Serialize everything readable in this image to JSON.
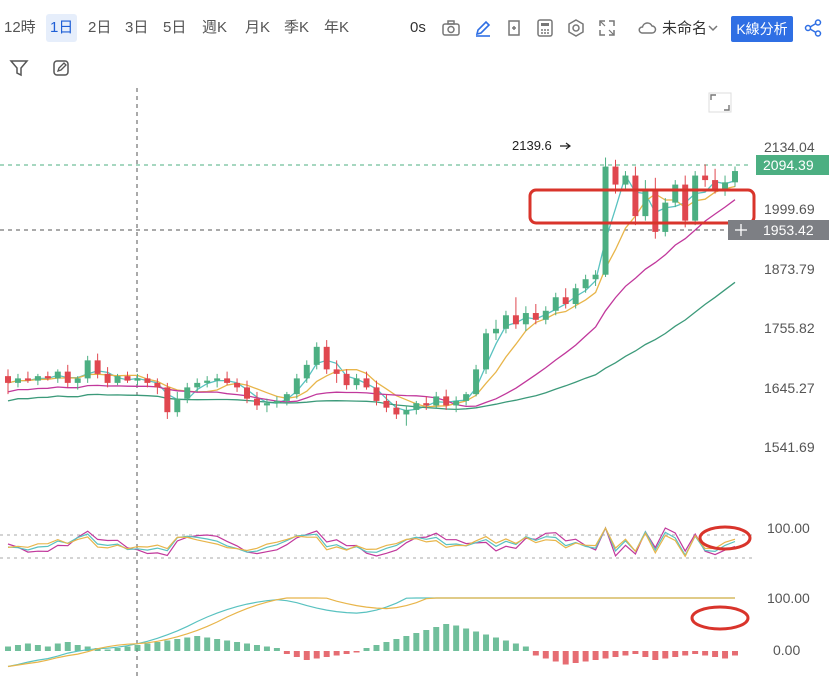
{
  "toolbar": {
    "timeframes": [
      "12時",
      "1日",
      "2日",
      "3日",
      "5日",
      "週K",
      "月K",
      "季K",
      "年K"
    ],
    "active_timeframe": "1日",
    "seconds_label": "0s",
    "layout_name": "未命名",
    "analysis_button": "K線分析"
  },
  "chart_data": [
    {
      "type": "candlestick",
      "price_axis_labels": [
        "2134.04",
        "1999.69",
        "1873.79",
        "1755.82",
        "1645.27",
        "1541.69"
      ],
      "current_price": "2094.39",
      "crosshair_price": "1953.42",
      "high_marker": "2139.6",
      "ylim": [
        1480,
        2190
      ],
      "moving_averages": 4,
      "ohlc": [
        [
          1655,
          1670,
          1615,
          1640
        ],
        [
          1640,
          1660,
          1630,
          1650
        ],
        [
          1650,
          1665,
          1640,
          1645
        ],
        [
          1645,
          1660,
          1635,
          1655
        ],
        [
          1655,
          1665,
          1645,
          1650
        ],
        [
          1650,
          1670,
          1640,
          1665
        ],
        [
          1665,
          1680,
          1630,
          1640
        ],
        [
          1640,
          1655,
          1625,
          1650
        ],
        [
          1650,
          1700,
          1640,
          1690
        ],
        [
          1690,
          1705,
          1650,
          1660
        ],
        [
          1660,
          1675,
          1630,
          1640
        ],
        [
          1640,
          1660,
          1635,
          1655
        ],
        [
          1655,
          1665,
          1640,
          1645
        ],
        [
          1645,
          1660,
          1635,
          1650
        ],
        [
          1650,
          1660,
          1630,
          1640
        ],
        [
          1640,
          1650,
          1615,
          1630
        ],
        [
          1630,
          1640,
          1560,
          1575
        ],
        [
          1575,
          1620,
          1565,
          1605
        ],
        [
          1605,
          1640,
          1595,
          1630
        ],
        [
          1630,
          1650,
          1620,
          1640
        ],
        [
          1640,
          1655,
          1630,
          1645
        ],
        [
          1645,
          1660,
          1630,
          1650
        ],
        [
          1650,
          1665,
          1635,
          1640
        ],
        [
          1640,
          1650,
          1620,
          1630
        ],
        [
          1630,
          1645,
          1595,
          1605
        ],
        [
          1605,
          1620,
          1580,
          1590
        ],
        [
          1590,
          1605,
          1575,
          1595
        ],
        [
          1595,
          1610,
          1585,
          1600
        ],
        [
          1600,
          1620,
          1590,
          1615
        ],
        [
          1615,
          1660,
          1605,
          1650
        ],
        [
          1650,
          1690,
          1640,
          1680
        ],
        [
          1680,
          1730,
          1670,
          1720
        ],
        [
          1720,
          1735,
          1660,
          1670
        ],
        [
          1670,
          1690,
          1640,
          1660
        ],
        [
          1660,
          1670,
          1625,
          1635
        ],
        [
          1635,
          1660,
          1625,
          1650
        ],
        [
          1650,
          1665,
          1625,
          1630
        ],
        [
          1630,
          1645,
          1590,
          1600
        ],
        [
          1600,
          1615,
          1575,
          1585
        ],
        [
          1585,
          1600,
          1560,
          1570
        ],
        [
          1570,
          1590,
          1545,
          1580
        ],
        [
          1580,
          1600,
          1570,
          1595
        ],
        [
          1595,
          1610,
          1580,
          1590
        ],
        [
          1590,
          1620,
          1585,
          1610
        ],
        [
          1610,
          1625,
          1580,
          1590
        ],
        [
          1590,
          1610,
          1575,
          1600
        ],
        [
          1600,
          1620,
          1590,
          1615
        ],
        [
          1615,
          1680,
          1610,
          1670
        ],
        [
          1670,
          1760,
          1660,
          1750
        ],
        [
          1750,
          1780,
          1735,
          1760
        ],
        [
          1760,
          1800,
          1750,
          1790
        ],
        [
          1790,
          1830,
          1760,
          1770
        ],
        [
          1770,
          1810,
          1755,
          1795
        ],
        [
          1795,
          1815,
          1770,
          1780
        ],
        [
          1780,
          1810,
          1770,
          1800
        ],
        [
          1800,
          1840,
          1790,
          1830
        ],
        [
          1830,
          1850,
          1805,
          1815
        ],
        [
          1815,
          1860,
          1805,
          1850
        ],
        [
          1850,
          1880,
          1840,
          1870
        ],
        [
          1870,
          1890,
          1855,
          1880
        ],
        [
          1880,
          2140,
          1875,
          2120
        ],
        [
          2120,
          2135,
          2060,
          2080
        ],
        [
          2080,
          2110,
          2070,
          2100
        ],
        [
          2100,
          2120,
          1990,
          2010
        ],
        [
          2010,
          2090,
          2000,
          2070
        ],
        [
          2070,
          2095,
          1960,
          1975
        ],
        [
          1975,
          2050,
          1965,
          2040
        ],
        [
          2040,
          2090,
          2030,
          2080
        ],
        [
          2080,
          2100,
          1985,
          2000
        ],
        [
          2000,
          2110,
          1990,
          2100
        ],
        [
          2100,
          2125,
          2075,
          2090
        ],
        [
          2090,
          2115,
          2060,
          2070
        ],
        [
          2070,
          2100,
          2055,
          2085
        ],
        [
          2085,
          2120,
          2075,
          2110
        ]
      ]
    },
    {
      "type": "line",
      "indicator": "oscillator",
      "axis_labels": [
        "100.00"
      ],
      "series_count": 3
    },
    {
      "type": "bar",
      "indicator": "macd",
      "axis_labels": [
        "100.00",
        "0.00"
      ],
      "histogram": [
        3,
        4,
        5,
        4,
        3,
        5,
        6,
        4,
        3,
        2,
        1,
        2,
        3,
        4,
        5,
        6,
        7,
        8,
        9,
        10,
        9,
        8,
        7,
        6,
        5,
        4,
        3,
        2,
        -2,
        -4,
        -6,
        -5,
        -4,
        -3,
        -2,
        -1,
        2,
        4,
        6,
        8,
        10,
        12,
        14,
        16,
        18,
        17,
        15,
        13,
        11,
        9,
        7,
        5,
        3,
        -3,
        -5,
        -7,
        -9,
        -8,
        -7,
        -6,
        -5,
        -4,
        -3,
        -2,
        -4,
        -6,
        -5,
        -4,
        -3,
        -2,
        -3,
        -4,
        -5,
        -3
      ]
    }
  ],
  "colors": {
    "up": "#4caf82",
    "down": "#e0474f",
    "ma_yellow": "#e8b54a",
    "ma_teal": "#59c2c0",
    "ma_magenta": "#c1389c",
    "ma_green": "#3c9a7a",
    "annotation": "#d9342b",
    "accent": "#2f6fe4",
    "price_tag_green": "#4caf82",
    "price_tag_gray": "#7d7f84"
  },
  "icons": [
    "camera-icon",
    "pencil-icon",
    "add-chart-icon",
    "calculator-icon",
    "settings-icon",
    "fullscreen-icon",
    "cloud-icon",
    "chevron-down-icon",
    "share-icon",
    "filter-icon",
    "edit-icon",
    "expand-icon"
  ]
}
